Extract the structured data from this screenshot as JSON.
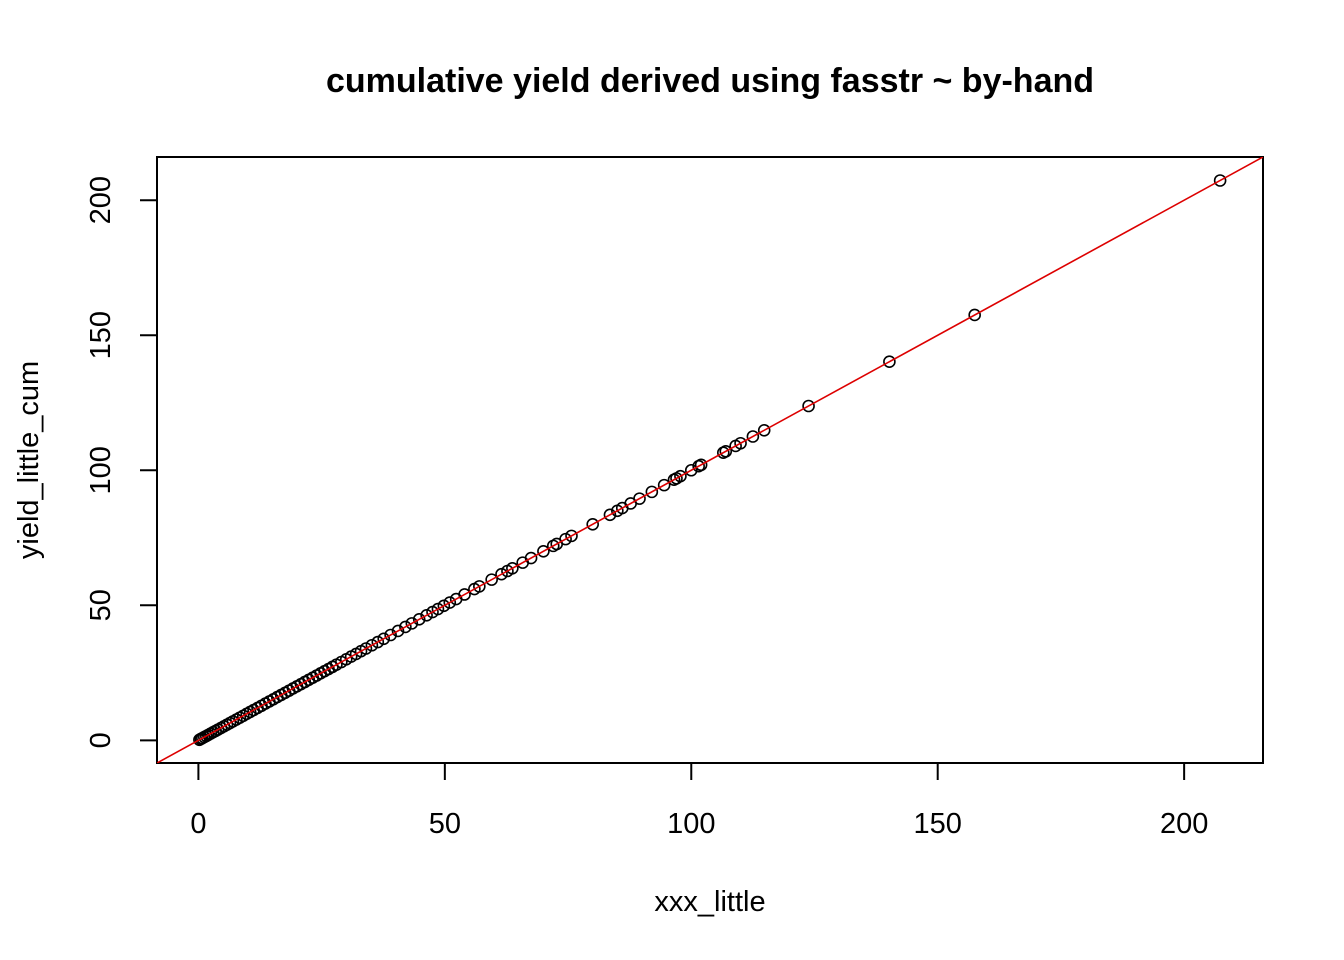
{
  "chart_data": {
    "type": "scatter",
    "title": "cumulative yield derived using fasstr ~ by-hand",
    "xlabel": "xxx_little",
    "ylabel": "yield_little_cum",
    "xlim": [
      -8.4,
      216
    ],
    "ylim": [
      -8.4,
      216
    ],
    "x_ticks": [
      0,
      50,
      100,
      150,
      200
    ],
    "y_ticks": [
      0,
      50,
      100,
      150,
      200
    ],
    "reference_line": {
      "intercept": 0,
      "slope": 1,
      "color": "#dd0000"
    },
    "point_color": "#000000",
    "points": [
      [
        0.2,
        0.2
      ],
      [
        0.5,
        0.5
      ],
      [
        0.8,
        0.8
      ],
      [
        1.2,
        1.2
      ],
      [
        1.6,
        1.6
      ],
      [
        2.0,
        2.0
      ],
      [
        2.5,
        2.5
      ],
      [
        3.0,
        3.0
      ],
      [
        3.5,
        3.5
      ],
      [
        4.0,
        4.0
      ],
      [
        4.6,
        4.6
      ],
      [
        5.2,
        5.2
      ],
      [
        5.8,
        5.8
      ],
      [
        6.4,
        6.4
      ],
      [
        7.0,
        7.0
      ],
      [
        7.7,
        7.7
      ],
      [
        8.4,
        8.4
      ],
      [
        9.1,
        9.1
      ],
      [
        9.8,
        9.8
      ],
      [
        10.5,
        10.5
      ],
      [
        11.2,
        11.2
      ],
      [
        12.0,
        12.0
      ],
      [
        12.8,
        12.8
      ],
      [
        13.6,
        13.6
      ],
      [
        14.4,
        14.4
      ],
      [
        15.2,
        15.2
      ],
      [
        16.0,
        16.0
      ],
      [
        16.8,
        16.8
      ],
      [
        17.6,
        17.6
      ],
      [
        18.4,
        18.4
      ],
      [
        19.2,
        19.2
      ],
      [
        20.0,
        20.0
      ],
      [
        20.8,
        20.8
      ],
      [
        21.6,
        21.6
      ],
      [
        22.4,
        22.4
      ],
      [
        23.2,
        23.2
      ],
      [
        24.0,
        24.0
      ],
      [
        24.8,
        24.8
      ],
      [
        25.6,
        25.6
      ],
      [
        26.4,
        26.4
      ],
      [
        27.2,
        27.2
      ],
      [
        28.0,
        28.0
      ],
      [
        29.0,
        29.0
      ],
      [
        30.0,
        30.0
      ],
      [
        31.0,
        31.0
      ],
      [
        32.0,
        32.0
      ],
      [
        33.0,
        33.0
      ],
      [
        34.0,
        34.0
      ],
      [
        35.2,
        35.2
      ],
      [
        36.4,
        36.4
      ],
      [
        37.6,
        37.6
      ],
      [
        39.0,
        39.0
      ],
      [
        40.5,
        40.5
      ],
      [
        42.0,
        42.0
      ],
      [
        43.3,
        43.3
      ],
      [
        44.8,
        44.8
      ],
      [
        46.3,
        46.3
      ],
      [
        47.5,
        47.5
      ],
      [
        48.6,
        48.6
      ],
      [
        49.8,
        49.8
      ],
      [
        51.0,
        51.0
      ],
      [
        52.3,
        52.3
      ],
      [
        54.0,
        54.0
      ],
      [
        56.0,
        56.0
      ],
      [
        57.0,
        57.0
      ],
      [
        59.5,
        59.5
      ],
      [
        61.5,
        61.5
      ],
      [
        62.7,
        62.7
      ],
      [
        63.7,
        63.7
      ],
      [
        65.8,
        65.8
      ],
      [
        67.5,
        67.5
      ],
      [
        70.0,
        70.0
      ],
      [
        72.0,
        72.0
      ],
      [
        72.7,
        72.7
      ],
      [
        74.5,
        74.5
      ],
      [
        75.7,
        75.7
      ],
      [
        80.0,
        80.0
      ],
      [
        83.5,
        83.5
      ],
      [
        85.0,
        85.0
      ],
      [
        86.0,
        86.0
      ],
      [
        87.7,
        87.7
      ],
      [
        89.5,
        89.5
      ],
      [
        92.0,
        92.0
      ],
      [
        94.5,
        94.5
      ],
      [
        96.5,
        96.5
      ],
      [
        97.0,
        97.0
      ],
      [
        97.8,
        97.8
      ],
      [
        100.0,
        100.0
      ],
      [
        101.5,
        101.5
      ],
      [
        102.0,
        102.0
      ],
      [
        106.5,
        106.5
      ],
      [
        107.0,
        107.0
      ],
      [
        109.0,
        109.0
      ],
      [
        110.0,
        110.0
      ],
      [
        112.5,
        112.5
      ],
      [
        114.8,
        114.8
      ],
      [
        123.8,
        123.8
      ],
      [
        140.2,
        140.2
      ],
      [
        157.5,
        157.5
      ],
      [
        207.3,
        207.3
      ]
    ]
  }
}
